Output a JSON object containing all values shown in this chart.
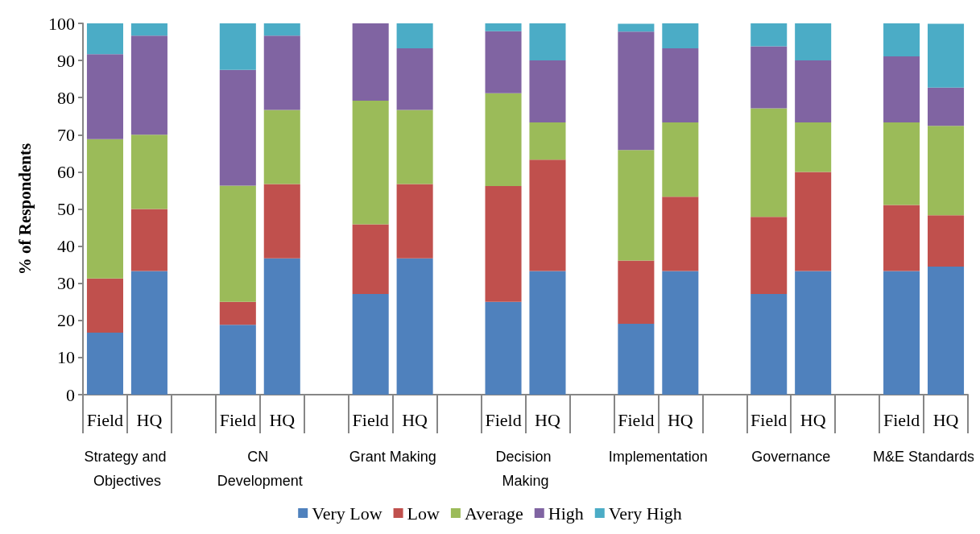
{
  "chart_data": {
    "type": "bar",
    "stacked": true,
    "ylabel": "% of Respondents",
    "categories": [
      "Field",
      "HQ",
      null,
      "Field",
      "HQ",
      null,
      "Field",
      "HQ",
      null,
      "Field",
      "HQ",
      null,
      "Field",
      "HQ",
      null,
      "Field",
      "HQ",
      null,
      "Field",
      "HQ"
    ],
    "annotations": [
      "Strategy and Objectives",
      "CN Development",
      "Grant Making",
      "Decision Making",
      "Implementation",
      "Governance",
      "M&E Standards"
    ],
    "series": [
      {
        "name": "Very Low",
        "color": "#4f81bd",
        "values": [
          16.7,
          33.3,
          null,
          18.8,
          36.7,
          null,
          27.1,
          36.7,
          null,
          25,
          33.3,
          null,
          19.1,
          33.3,
          null,
          27.1,
          33.3,
          null,
          33.3,
          34.5
        ]
      },
      {
        "name": "Low",
        "color": "#c0504d",
        "values": [
          14.6,
          16.7,
          null,
          6.2,
          20,
          null,
          18.8,
          20,
          null,
          31.2,
          30,
          null,
          17,
          20,
          null,
          20.8,
          26.7,
          null,
          17.8,
          13.8
        ]
      },
      {
        "name": "Average",
        "color": "#9bbb59",
        "values": [
          37.5,
          20,
          null,
          31.3,
          20,
          null,
          33.3,
          20,
          null,
          25,
          10,
          null,
          29.8,
          20,
          null,
          29.2,
          13.3,
          null,
          22.2,
          24.1
        ]
      },
      {
        "name": "High",
        "color": "#8064a2",
        "values": [
          22.9,
          26.7,
          null,
          31.2,
          20,
          null,
          20.8,
          16.6,
          null,
          16.7,
          16.7,
          null,
          31.9,
          20,
          null,
          16.7,
          16.7,
          null,
          17.8,
          10.3
        ]
      },
      {
        "name": "Very High",
        "color": "#4bacc6",
        "values": [
          8.3,
          3.3,
          null,
          12.5,
          3.3,
          null,
          null,
          6.7,
          null,
          2.1,
          10,
          null,
          2.1,
          6.7,
          null,
          6.2,
          10,
          null,
          8.9,
          17.2
        ]
      }
    ],
    "ylim": [
      0,
      100
    ],
    "yticks": [
      0,
      10,
      20,
      30,
      40,
      50,
      60,
      70,
      80,
      90,
      100
    ],
    "grid": false,
    "legend": "bottom"
  }
}
